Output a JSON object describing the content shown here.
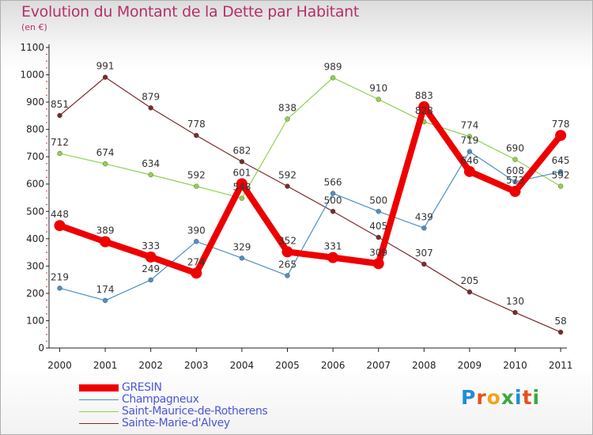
{
  "header": {
    "title": "Evolution du Montant de la Dette par Habitant",
    "unit": "(en €)"
  },
  "brand": {
    "text": "Proxiti",
    "letters": [
      "P",
      "r",
      "o",
      "x",
      "i",
      "t",
      "i"
    ],
    "colors": [
      "#1f8dd6",
      "#e8501a",
      "#f2a516",
      "#3aa845",
      "#1f8dd6",
      "#e8501a",
      "#3aa845"
    ]
  },
  "chart_data": {
    "type": "line",
    "title": "Evolution du Montant de la Dette par Habitant",
    "ylabel": "(en €)",
    "xlabel": "",
    "x": [
      "2000",
      "2001",
      "2002",
      "2003",
      "2004",
      "2005",
      "2006",
      "2007",
      "2008",
      "2009",
      "2010",
      "2011"
    ],
    "ylim": [
      0,
      1100
    ],
    "yticks": [
      0,
      100,
      200,
      300,
      400,
      500,
      600,
      700,
      800,
      900,
      1000,
      1100
    ],
    "grid": false,
    "legend_position": "bottom-left",
    "series": [
      {
        "name": "GRESIN",
        "color": "#ee0000",
        "emphasis": true,
        "values": [
          448,
          389,
          333,
          274,
          601,
          352,
          331,
          309,
          883,
          646,
          573,
          778
        ],
        "labels": [
          "448",
          "389",
          "333",
          "274",
          "601",
          "352",
          "331",
          "309",
          "883",
          "646",
          "573",
          "778"
        ]
      },
      {
        "name": "Champagneux",
        "color": "#4a90c8",
        "values": [
          219,
          174,
          249,
          390,
          329,
          265,
          566,
          500,
          439,
          719,
          608,
          645
        ],
        "labels": [
          "219",
          "174",
          "249",
          "390",
          "329",
          "265",
          "566",
          "500",
          "439",
          "719",
          "608",
          "645"
        ]
      },
      {
        "name": "Saint-Maurice-de-Rotherens",
        "color": "#8fd14f",
        "values": [
          712,
          674,
          634,
          592,
          548,
          838,
          989,
          910,
          828,
          774,
          690,
          592
        ],
        "labels": [
          "712",
          "674",
          "634",
          "592",
          "548",
          "838",
          "989",
          "910",
          "828",
          "774",
          "690",
          "592"
        ]
      },
      {
        "name": "Sainte-Marie-d'Alvey",
        "color": "#7a2a2a",
        "values": [
          851,
          991,
          879,
          778,
          682,
          592,
          500,
          405,
          307,
          205,
          130,
          58
        ],
        "labels": [
          "851",
          "991",
          "879",
          "778",
          "682",
          "592",
          "500",
          "405",
          "307",
          "205",
          "130",
          "58"
        ]
      }
    ]
  }
}
